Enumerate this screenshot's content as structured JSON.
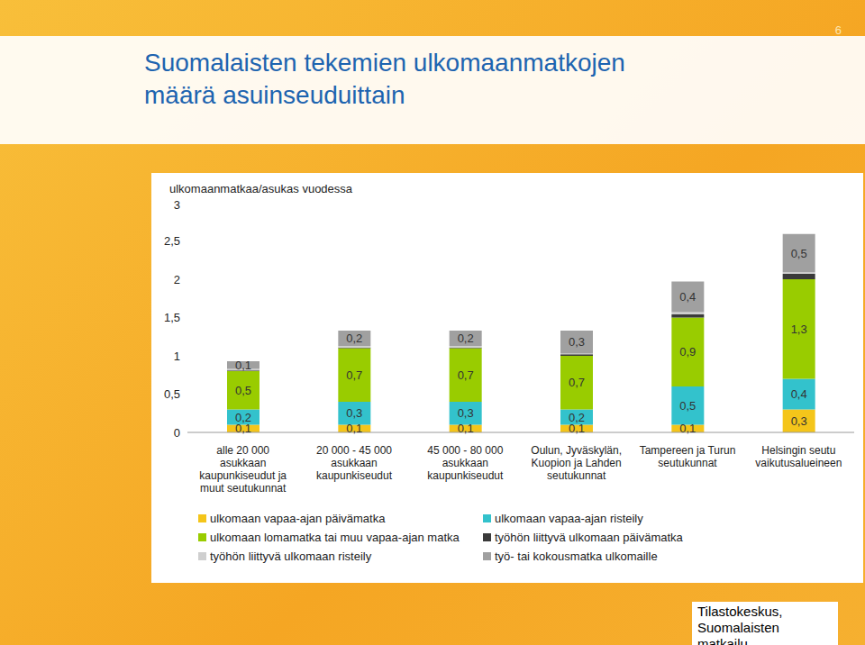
{
  "title": "Suomalaisten tekemien ulkomaanmatkojen määrä asuinseuduittain",
  "page_number": "6",
  "source": "Tilastokeskus, Suomalaisten matkailu",
  "chart_data": {
    "type": "bar",
    "stacked": true,
    "grid": false,
    "ylabel": "ulkomaanmatkaa/asukas vuodessa",
    "categories": [
      "alle 20 000 asukkaan kaupunkiseudut ja muut seutukunnat",
      "20 000 - 45 000 asukkaan kaupunkiseudut",
      "45 000 - 80 000 asukkaan kaupunkiseudut",
      "Oulun, Jyväskylän, Kuopion ja Lahden seutukunnat",
      "Tampereen ja Turun seutukunnat",
      "Helsingin seutu vaikutusalueineen"
    ],
    "ylim": [
      0,
      3
    ],
    "yticks": [
      0,
      {
        "value": 0.5,
        "label": "0,5"
      },
      1,
      {
        "value": 1.5,
        "label": "1,5"
      },
      2,
      {
        "value": 2.5,
        "label": "2,5"
      },
      3
    ],
    "series": [
      {
        "name": "ulkomaan vapaa-ajan päivämatka",
        "color": "#f4c51a",
        "data_labels": true,
        "values": [
          0.1,
          0.1,
          0.1,
          0.1,
          0.1,
          0.3
        ],
        "value_labels": [
          "0,1",
          "0,1",
          "0,1",
          "0,1",
          "0,1",
          "0,3"
        ]
      },
      {
        "name": "ulkomaan vapaa-ajan risteily",
        "color": "#33c2cc",
        "data_labels": true,
        "values": [
          0.2,
          0.3,
          0.3,
          0.2,
          0.5,
          0.4
        ],
        "value_labels": [
          "0,2",
          "0,3",
          "0,3",
          "0,2",
          "0,5",
          "0,4"
        ]
      },
      {
        "name": "ulkomaan lomamatka tai muu vapaa-ajan matka",
        "color": "#99cc00",
        "data_labels": true,
        "values": [
          0.5,
          0.7,
          0.7,
          0.7,
          0.9,
          1.3
        ],
        "value_labels": [
          "0,5",
          "0,7",
          "0,7",
          "0,7",
          "0,9",
          "1,3"
        ]
      },
      {
        "name": "työhön liittyvä ulkomaan päivämatka",
        "color": "#3a3a3a",
        "data_labels": false,
        "values": [
          0.01,
          0.01,
          0.01,
          0.02,
          0.04,
          0.07
        ]
      },
      {
        "name": "työhön liittyvä ulkomaan risteily",
        "color": "#cfcfcf",
        "data_labels": false,
        "values": [
          0.02,
          0.02,
          0.02,
          0.01,
          0.03,
          0.02
        ]
      },
      {
        "name": "työ- tai kokousmatka ulkomaille",
        "color": "#a0a0a0",
        "data_labels": true,
        "values": [
          0.1,
          0.2,
          0.2,
          0.3,
          0.4,
          0.5
        ],
        "value_labels": [
          "0,1",
          "0,2",
          "0,2",
          "0,3",
          "0,4",
          "0,5"
        ]
      }
    ]
  }
}
